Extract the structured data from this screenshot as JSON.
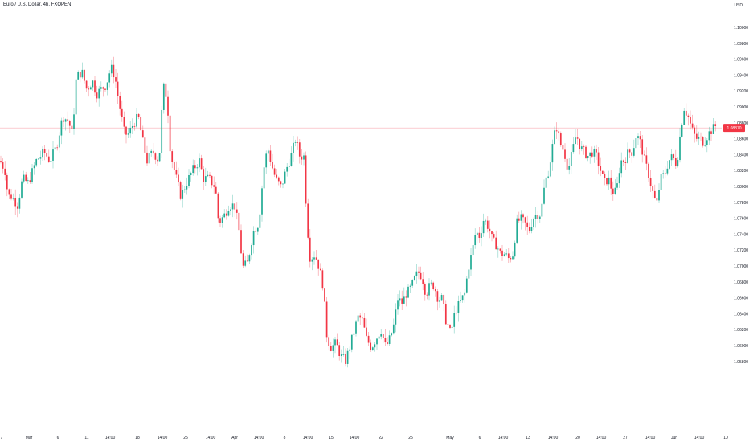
{
  "header": {
    "title": "Euro / U.S. Dollar, 4h, FXOPEN",
    "currency": "USD"
  },
  "colors": {
    "up": "#22ab94",
    "down": "#f23645",
    "wick": "#787b86",
    "price_line": "#f23645",
    "price_tag_bg": "#f23645"
  },
  "chart_data": {
    "type": "candlestick",
    "title": "Euro / U.S. Dollar, 4h, FXOPEN",
    "ylabel": "USD",
    "ylim": [
      1.055,
      1.102
    ],
    "y_ticks": [
      "1.10000",
      "1.09800",
      "1.09600",
      "1.09400",
      "1.09200",
      "1.09000",
      "1.08800",
      "1.08600",
      "1.08400",
      "1.08200",
      "1.08000",
      "1.07800",
      "1.07600",
      "1.07400",
      "1.07200",
      "1.07000",
      "1.06800",
      "1.06600",
      "1.06400",
      "1.06200",
      "1.06000",
      "1.05800"
    ],
    "x_ticks": [
      "7",
      "Mar",
      "6",
      "11",
      "14:00",
      "18",
      "14:00",
      "25",
      "14:00",
      "Apr",
      "14:00",
      "8",
      "14:00",
      "15",
      "14:00",
      "22",
      "25",
      "May",
      "6",
      "14:00",
      "13",
      "14:00",
      "20",
      "14:00",
      "27",
      "14:00",
      "Jun",
      "14:00",
      "10"
    ],
    "last_price": 1.0887,
    "last_price_label": "1.08870",
    "keypoints": [
      [
        0,
        1.085
      ],
      [
        6,
        1.084
      ],
      [
        10,
        1.081
      ],
      [
        15,
        1.081
      ],
      [
        22,
        1.08
      ],
      [
        28,
        1.083
      ],
      [
        35,
        1.0825
      ],
      [
        45,
        1.085
      ],
      [
        55,
        1.086
      ],
      [
        62,
        1.085
      ],
      [
        70,
        1.0865
      ],
      [
        78,
        1.09
      ],
      [
        85,
        1.0895
      ],
      [
        90,
        1.088
      ],
      [
        95,
        1.0945
      ],
      [
        102,
        1.095
      ],
      [
        108,
        1.093
      ],
      [
        115,
        1.094
      ],
      [
        120,
        1.0925
      ],
      [
        125,
        1.093
      ],
      [
        132,
        1.0935
      ],
      [
        138,
        1.0955
      ],
      [
        143,
        1.0945
      ],
      [
        148,
        1.0915
      ],
      [
        155,
        1.088
      ],
      [
        160,
        1.088
      ],
      [
        165,
        1.089
      ],
      [
        172,
        1.09
      ],
      [
        178,
        1.087
      ],
      [
        183,
        1.085
      ],
      [
        190,
        1.086
      ],
      [
        198,
        1.085
      ],
      [
        203,
        1.0935
      ],
      [
        208,
        1.092
      ],
      [
        212,
        1.086
      ],
      [
        218,
        1.0835
      ],
      [
        225,
        1.081
      ],
      [
        232,
        1.0825
      ],
      [
        240,
        1.084
      ],
      [
        248,
        1.085
      ],
      [
        253,
        1.083
      ],
      [
        260,
        1.083
      ],
      [
        268,
        1.082
      ],
      [
        272,
        1.078
      ],
      [
        280,
        1.079
      ],
      [
        285,
        1.08
      ],
      [
        292,
        1.08
      ],
      [
        297,
        1.0775
      ],
      [
        302,
        1.073
      ],
      [
        308,
        1.0735
      ],
      [
        315,
        1.077
      ],
      [
        322,
        1.078
      ],
      [
        328,
        1.084
      ],
      [
        333,
        1.0865
      ],
      [
        338,
        1.0845
      ],
      [
        343,
        1.083
      ],
      [
        350,
        1.082
      ],
      [
        356,
        1.084
      ],
      [
        362,
        1.0855
      ],
      [
        368,
        1.0875
      ],
      [
        373,
        1.0855
      ],
      [
        378,
        1.0855
      ],
      [
        382,
        1.078
      ],
      [
        386,
        1.074
      ],
      [
        392,
        1.0745
      ],
      [
        397,
        1.073
      ],
      [
        402,
        1.071
      ],
      [
        407,
        1.065
      ],
      [
        412,
        1.064
      ],
      [
        418,
        1.0645
      ],
      [
        424,
        1.063
      ],
      [
        430,
        1.0625
      ],
      [
        435,
        1.064
      ],
      [
        441,
        1.066
      ],
      [
        446,
        1.0675
      ],
      [
        451,
        1.067
      ],
      [
        456,
        1.065
      ],
      [
        462,
        1.064
      ],
      [
        468,
        1.065
      ],
      [
        474,
        1.066
      ],
      [
        480,
        1.064
      ],
      [
        485,
        1.065
      ],
      [
        490,
        1.0665
      ],
      [
        495,
        1.0695
      ],
      [
        500,
        1.069
      ],
      [
        505,
        1.07
      ],
      [
        510,
        1.0705
      ],
      [
        515,
        1.0715
      ],
      [
        520,
        1.0725
      ],
      [
        525,
        1.072
      ],
      [
        530,
        1.07
      ],
      [
        535,
        1.071
      ],
      [
        540,
        1.071
      ],
      [
        545,
        1.0695
      ],
      [
        550,
        1.0695
      ],
      [
        555,
        1.067
      ],
      [
        561,
        1.0655
      ],
      [
        566,
        1.068
      ],
      [
        572,
        1.069
      ],
      [
        578,
        1.07
      ],
      [
        583,
        1.073
      ],
      [
        588,
        1.075
      ],
      [
        592,
        1.077
      ],
      [
        597,
        1.0765
      ],
      [
        602,
        1.0785
      ],
      [
        608,
        1.0775
      ],
      [
        613,
        1.076
      ],
      [
        618,
        1.0755
      ],
      [
        623,
        1.0745
      ],
      [
        628,
        1.0745
      ],
      [
        633,
        1.074
      ],
      [
        638,
        1.0745
      ],
      [
        643,
        1.078
      ],
      [
        648,
        1.0785
      ],
      [
        653,
        1.078
      ],
      [
        658,
        1.077
      ],
      [
        663,
        1.0785
      ],
      [
        668,
        1.079
      ],
      [
        673,
        1.079
      ],
      [
        678,
        1.0825
      ],
      [
        683,
        1.084
      ],
      [
        688,
        1.087
      ],
      [
        692,
        1.089
      ],
      [
        697,
        1.087
      ],
      [
        702,
        1.086
      ],
      [
        707,
        1.084
      ],
      [
        712,
        1.086
      ],
      [
        717,
        1.088
      ],
      [
        722,
        1.0865
      ],
      [
        727,
        1.086
      ],
      [
        732,
        1.0855
      ],
      [
        737,
        1.086
      ],
      [
        742,
        1.0855
      ],
      [
        747,
        1.084
      ],
      [
        752,
        1.0825
      ],
      [
        757,
        1.083
      ],
      [
        762,
        1.0815
      ],
      [
        767,
        1.0815
      ],
      [
        772,
        1.085
      ],
      [
        777,
        1.085
      ],
      [
        782,
        1.086
      ],
      [
        787,
        1.086
      ],
      [
        792,
        1.088
      ],
      [
        797,
        1.087
      ],
      [
        802,
        1.085
      ],
      [
        807,
        1.0835
      ],
      [
        812,
        1.0815
      ],
      [
        817,
        1.08
      ],
      [
        822,
        1.083
      ],
      [
        827,
        1.0835
      ],
      [
        832,
        1.085
      ],
      [
        837,
        1.0855
      ],
      [
        842,
        1.0845
      ],
      [
        847,
        1.0885
      ],
      [
        851,
        1.091
      ],
      [
        856,
        1.09
      ],
      [
        861,
        1.0885
      ],
      [
        866,
        1.0875
      ],
      [
        871,
        1.0875
      ],
      [
        876,
        1.087
      ],
      [
        881,
        1.088
      ],
      [
        886,
        1.0885
      ],
      [
        891,
        1.089
      ],
      [
        893,
        1.0887
      ]
    ]
  }
}
